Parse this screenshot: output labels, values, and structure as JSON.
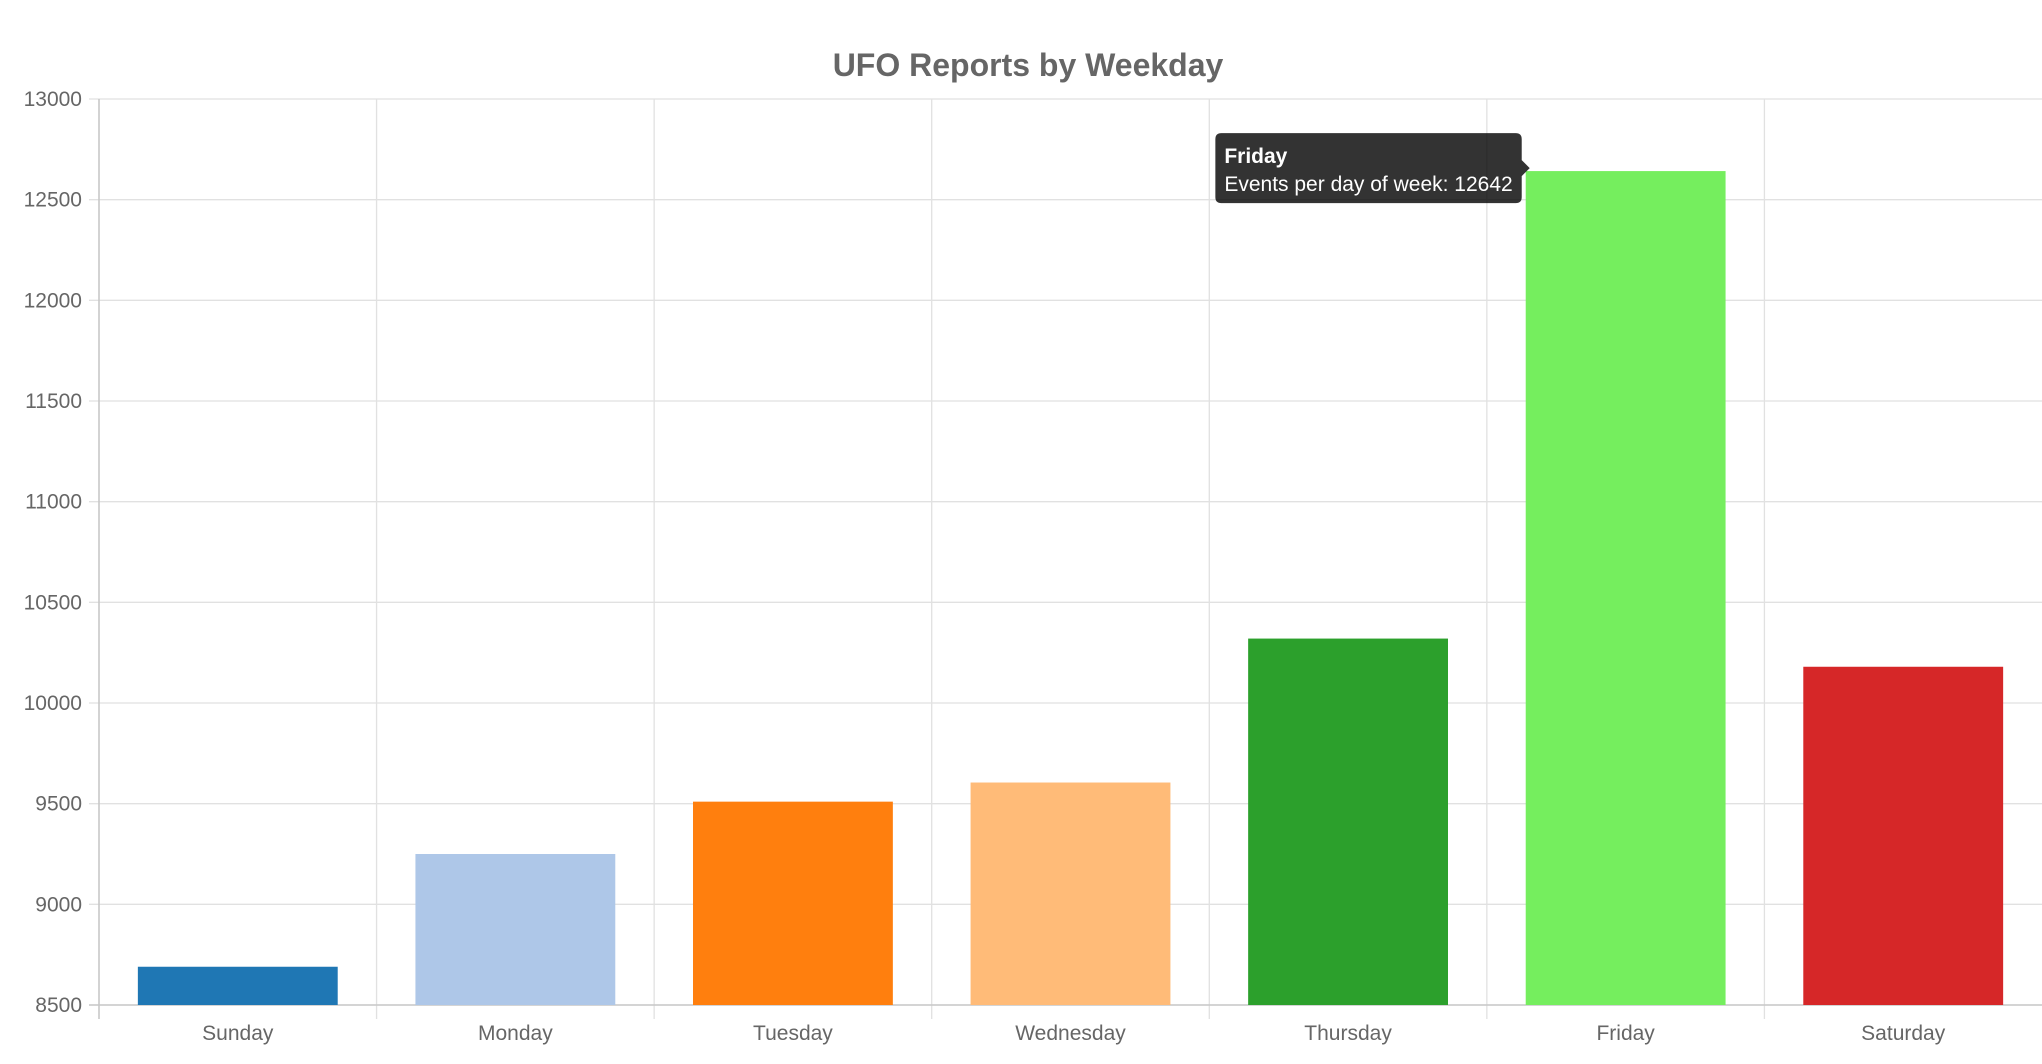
{
  "chart_data": {
    "type": "bar",
    "title": "UFO Reports by Weekday",
    "categories": [
      "Sunday",
      "Monday",
      "Tuesday",
      "Wednesday",
      "Thursday",
      "Friday",
      "Saturday"
    ],
    "series": [
      {
        "name": "Events per day of week",
        "values": [
          8690,
          9250,
          9510,
          9605,
          10320,
          12642,
          10180
        ],
        "colors": [
          "#1f77b4",
          "#aec7e8",
          "#ff7f0e",
          "#ffbb78",
          "#2ca02c",
          "#75ee5e",
          "#d62728"
        ]
      }
    ],
    "ylim": [
      8500,
      13000
    ],
    "yticks": [
      8500,
      9000,
      9500,
      10000,
      10500,
      11000,
      11500,
      12000,
      12500,
      13000
    ],
    "grid": true,
    "legend": "none"
  },
  "tooltip": {
    "title": "Friday",
    "label": "Events per day of week: 12642",
    "category_index": 5
  }
}
